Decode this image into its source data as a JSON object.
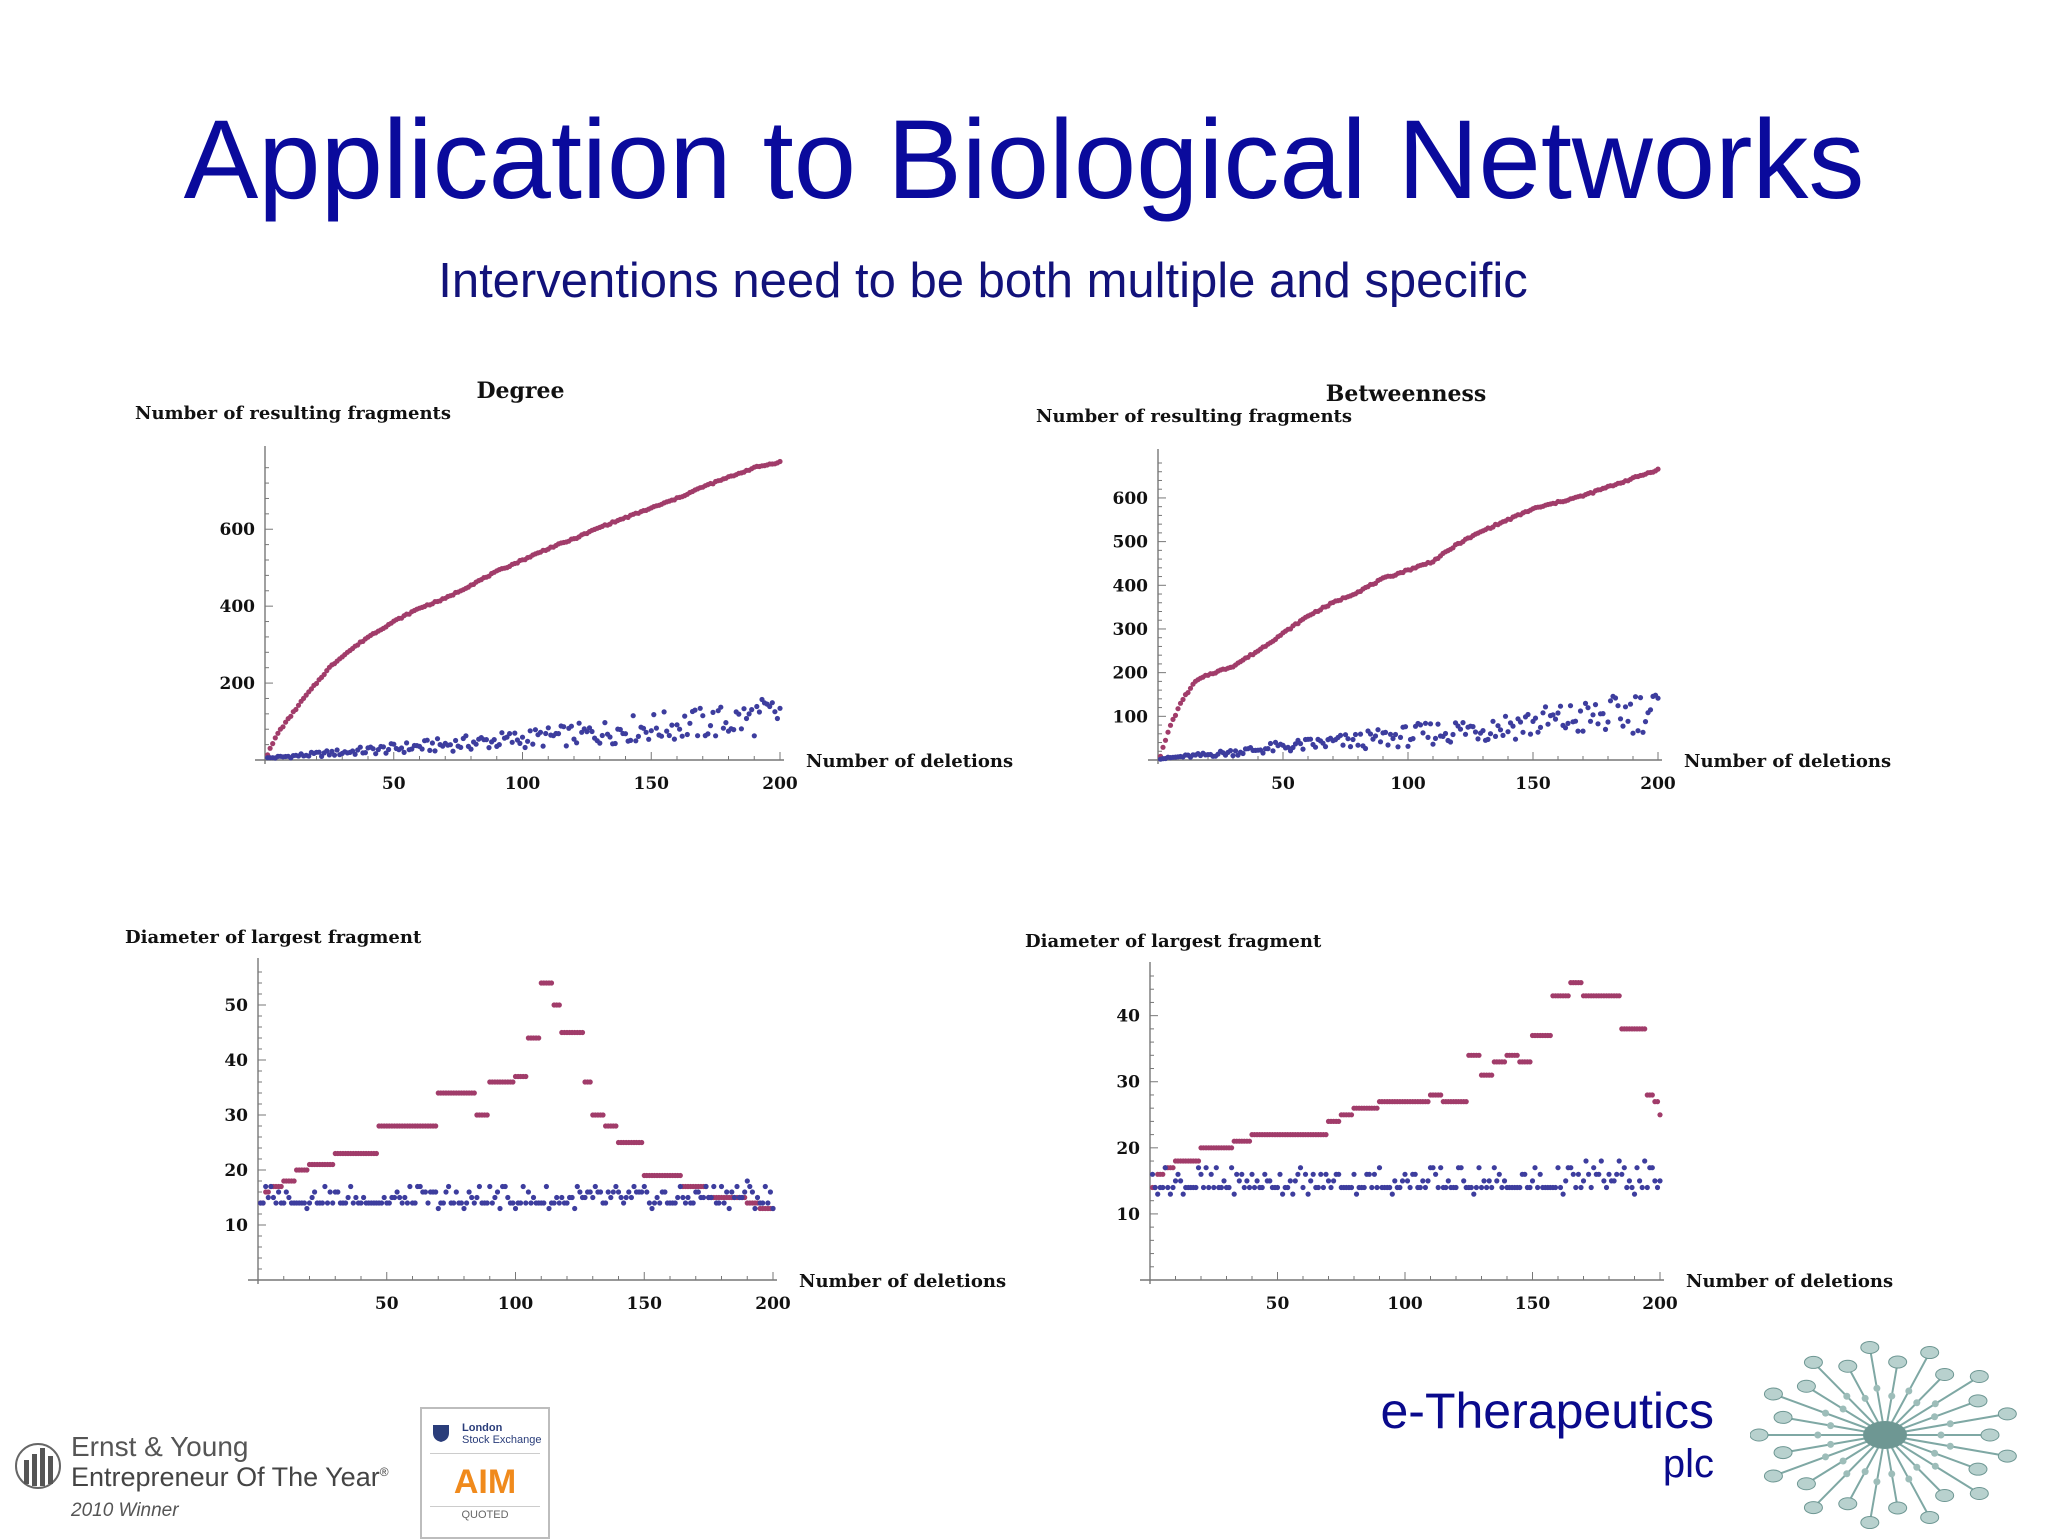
{
  "slide": {
    "title": "Application to Biological Networks",
    "subtitle": "Interventions need to be both multiple and specific"
  },
  "branding": {
    "company": "e-Therapeutics",
    "company_suffix": "plc",
    "award_line1": "Ernst & Young",
    "award_line2": "Entrepreneur Of The Year",
    "award_mark": "®",
    "award_line3": "2010 Winner",
    "exchange_line1": "London",
    "exchange_line2": "Stock Exchange",
    "market_mark": "AIM",
    "market_sub": "QUOTED"
  },
  "colors": {
    "targeted_series": "#a13c6a",
    "random_series": "#3d3d9e",
    "title": "#0a0a9c",
    "brand": "#0a0a8c",
    "logo_teal": "#7fa8a4"
  },
  "chart_data": [
    {
      "type": "scatter",
      "title": "Degree",
      "xlabel": "Number of deletions",
      "ylabel": "Number of resulting fragments",
      "xlim": [
        0,
        200
      ],
      "ylim": [
        0,
        780
      ],
      "xticks": [
        50,
        100,
        150,
        200
      ],
      "yticks": [
        200,
        400,
        600
      ],
      "grid": false,
      "series": [
        {
          "color": "#a13c6a",
          "x": [
            1,
            5,
            10,
            15,
            20,
            25,
            30,
            40,
            50,
            60,
            70,
            80,
            90,
            100,
            110,
            120,
            130,
            140,
            150,
            160,
            170,
            180,
            190,
            200
          ],
          "y": [
            15,
            70,
            115,
            160,
            200,
            240,
            270,
            320,
            360,
            395,
            420,
            455,
            490,
            520,
            550,
            575,
            605,
            630,
            655,
            680,
            710,
            735,
            760,
            775
          ]
        },
        {
          "color": "#3d3d9e",
          "x": [
            1,
            10,
            20,
            30,
            40,
            50,
            60,
            70,
            80,
            90,
            100,
            110,
            120,
            130,
            140,
            150,
            160,
            170,
            180,
            190,
            200
          ],
          "y": [
            5,
            10,
            15,
            20,
            25,
            30,
            35,
            40,
            45,
            50,
            55,
            60,
            65,
            70,
            80,
            85,
            90,
            95,
            100,
            110,
            120
          ]
        }
      ]
    },
    {
      "type": "scatter",
      "title": "Betweenness",
      "xlabel": "Number of deletions",
      "ylabel": "Number of resulting fragments",
      "xlim": [
        0,
        200
      ],
      "ylim": [
        0,
        680
      ],
      "xticks": [
        50,
        100,
        150,
        200
      ],
      "yticks": [
        100,
        200,
        300,
        400,
        500,
        600
      ],
      "grid": false,
      "series": [
        {
          "color": "#a13c6a",
          "x": [
            1,
            5,
            10,
            15,
            20,
            30,
            40,
            50,
            60,
            70,
            80,
            90,
            100,
            110,
            120,
            130,
            140,
            150,
            160,
            170,
            180,
            190,
            200
          ],
          "y": [
            10,
            80,
            140,
            180,
            195,
            215,
            250,
            290,
            330,
            360,
            385,
            415,
            435,
            455,
            495,
            525,
            550,
            575,
            590,
            605,
            625,
            645,
            665
          ]
        },
        {
          "color": "#3d3d9e",
          "x": [
            1,
            10,
            20,
            30,
            40,
            50,
            60,
            70,
            80,
            90,
            100,
            110,
            120,
            130,
            140,
            150,
            160,
            170,
            180,
            190,
            200
          ],
          "y": [
            3,
            8,
            12,
            18,
            24,
            30,
            35,
            40,
            44,
            50,
            55,
            62,
            68,
            74,
            80,
            85,
            90,
            95,
            100,
            110,
            115
          ]
        }
      ]
    },
    {
      "type": "scatter",
      "title": "",
      "xlabel": "Number of deletions",
      "ylabel": "Diameter of largest fragment",
      "xlim": [
        0,
        200
      ],
      "ylim": [
        0,
        56
      ],
      "xticks": [
        50,
        100,
        150,
        200
      ],
      "yticks": [
        10,
        20,
        30,
        40,
        50
      ],
      "grid": false,
      "series": [
        {
          "color": "#a13c6a",
          "x": [
            1,
            3,
            5,
            10,
            15,
            20,
            25,
            30,
            40,
            47,
            60,
            70,
            80,
            85,
            90,
            100,
            105,
            110,
            112,
            115,
            118,
            122,
            127,
            130,
            135,
            140,
            145,
            150,
            160,
            165,
            175,
            190,
            195,
            200
          ],
          "y": [
            14,
            16,
            17,
            18,
            20,
            21,
            21,
            23,
            23,
            28,
            28,
            34,
            34,
            30,
            36,
            37,
            44,
            54,
            54,
            50,
            45,
            45,
            36,
            30,
            28,
            25,
            25,
            19,
            19,
            17,
            15,
            14,
            13,
            13
          ]
        },
        {
          "color": "#3d3d9e",
          "x": [
            1,
            20,
            40,
            60,
            80,
            100,
            120,
            140,
            160,
            180,
            200
          ],
          "y": [
            14,
            14,
            14.5,
            15,
            14.5,
            15,
            14.5,
            15,
            15,
            15,
            14
          ]
        }
      ]
    },
    {
      "type": "scatter",
      "title": "",
      "xlabel": "Number of deletions",
      "ylabel": "Diameter of largest fragment",
      "xlim": [
        0,
        200
      ],
      "ylim": [
        0,
        46
      ],
      "xticks": [
        50,
        100,
        150,
        200
      ],
      "yticks": [
        10,
        20,
        30,
        40
      ],
      "grid": false,
      "series": [
        {
          "color": "#a13c6a",
          "x": [
            1,
            3,
            6,
            10,
            20,
            33,
            40,
            50,
            60,
            66,
            70,
            75,
            80,
            85,
            90,
            100,
            110,
            115,
            120,
            125,
            130,
            135,
            140,
            145,
            150,
            155,
            158,
            165,
            170,
            180,
            185,
            195,
            198,
            200
          ],
          "y": [
            14,
            16,
            17,
            18,
            20,
            21,
            22,
            22,
            22,
            22,
            24,
            25,
            26,
            26,
            27,
            27,
            28,
            27,
            27,
            34,
            31,
            33,
            34,
            33,
            37,
            37,
            43,
            45,
            43,
            43,
            38,
            28,
            27,
            25
          ]
        },
        {
          "color": "#3d3d9e",
          "x": [
            1,
            20,
            40,
            60,
            80,
            100,
            120,
            140,
            160,
            180,
            200
          ],
          "y": [
            14,
            14,
            14.5,
            15,
            14.5,
            15,
            14.5,
            15,
            15,
            15,
            14
          ]
        }
      ]
    }
  ]
}
